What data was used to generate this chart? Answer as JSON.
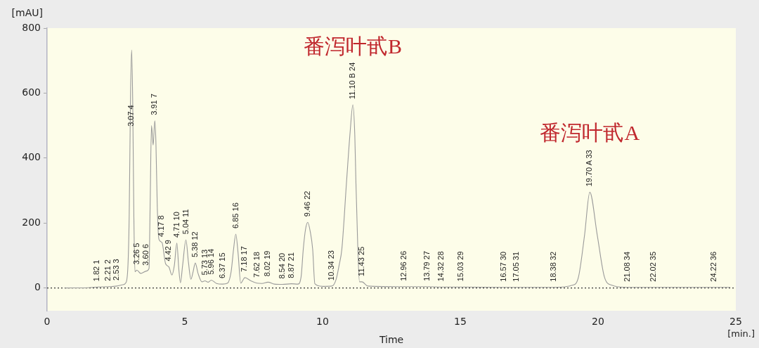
{
  "chart_data": {
    "type": "line",
    "xlabel": "Time",
    "ylabel": "[mAU]",
    "x": [
      0.66,
      1.5,
      1.82,
      2.21,
      2.53,
      2.75,
      2.85,
      2.93,
      2.98,
      3.03,
      3.07,
      3.11,
      3.15,
      3.19,
      3.26,
      3.4,
      3.6,
      3.7,
      3.74,
      3.79,
      3.85,
      3.91,
      3.95,
      4.0,
      4.06,
      4.17,
      4.3,
      4.42,
      4.53,
      4.62,
      4.71,
      4.78,
      4.84,
      4.92,
      5.04,
      5.13,
      5.22,
      5.3,
      5.38,
      5.48,
      5.62,
      5.73,
      5.85,
      5.96,
      6.15,
      6.37,
      6.55,
      6.68,
      6.77,
      6.85,
      6.93,
      7.03,
      7.18,
      7.4,
      7.62,
      7.8,
      8.02,
      8.25,
      8.54,
      8.87,
      9.1,
      9.22,
      9.3,
      9.38,
      9.46,
      9.55,
      9.64,
      9.72,
      10.0,
      10.34,
      10.49,
      10.6,
      10.7,
      10.87,
      11.0,
      11.1,
      11.17,
      11.21,
      11.28,
      11.34,
      11.43,
      11.64,
      12.96,
      13.79,
      14.32,
      15.03,
      16.57,
      17.05,
      18.38,
      19.08,
      19.29,
      19.51,
      19.7,
      19.97,
      20.23,
      20.49,
      21.08,
      22.02,
      24.22,
      24.8
    ],
    "series": [
      {
        "color": "#9a9a9a",
        "values": [
          0,
          1,
          3,
          4,
          6,
          10,
          15,
          60,
          219,
          600,
          733,
          560,
          219,
          50,
          55,
          45,
          52,
          60,
          250,
          500,
          440,
          515,
          450,
          250,
          150,
          140,
          75,
          65,
          40,
          70,
          138,
          60,
          16,
          70,
          148,
          80,
          27,
          50,
          77,
          45,
          19,
          22,
          18,
          24,
          14,
          12,
          15,
          50,
          120,
          166,
          110,
          15,
          32,
          22,
          15,
          14,
          18,
          12,
          11,
          13,
          12,
          34,
          120,
          180,
          202,
          175,
          120,
          13,
          5,
          6,
          26,
          70,
          120,
          327,
          480,
          564,
          470,
          327,
          120,
          19,
          19,
          6,
          4,
          4,
          3,
          3,
          2,
          2,
          2,
          9,
          34,
          163,
          295,
          163,
          34,
          9,
          2,
          2,
          2,
          2
        ]
      }
    ],
    "xlim": [
      0,
      25
    ],
    "xticks": [
      0,
      5,
      10,
      15,
      20,
      25
    ],
    "ylim": [
      -70,
      800
    ],
    "yticks": [
      0,
      200,
      400,
      600,
      800
    ],
    "grid": false,
    "legend": false,
    "marker": "none",
    "line_style": "solid",
    "ref_lines": [
      {
        "axis": "y",
        "value": 0,
        "color": "#333333",
        "line_style": "dotted"
      }
    ],
    "annotations": [
      {
        "text": "1.82 1",
        "x": 1.82,
        "y": 3
      },
      {
        "text": "2.21 2",
        "x": 2.21,
        "y": 4
      },
      {
        "text": "2.53 3",
        "x": 2.53,
        "y": 6
      },
      {
        "text": "3.07 4",
        "x": 3.07,
        "y": 480
      },
      {
        "text": "3.26 5",
        "x": 3.26,
        "y": 55
      },
      {
        "text": "3.60 6",
        "x": 3.6,
        "y": 52
      },
      {
        "text": "3.91 7",
        "x": 3.91,
        "y": 515
      },
      {
        "text": "4.17 8",
        "x": 4.17,
        "y": 140
      },
      {
        "text": "4.42 9",
        "x": 4.42,
        "y": 65
      },
      {
        "text": "4.71 10",
        "x": 4.71,
        "y": 138
      },
      {
        "text": "5.04 11",
        "x": 5.04,
        "y": 148
      },
      {
        "text": "5.38 12",
        "x": 5.38,
        "y": 77
      },
      {
        "text": "5.73 13",
        "x": 5.73,
        "y": 22
      },
      {
        "text": "5.96 14",
        "x": 5.96,
        "y": 24
      },
      {
        "text": "6.37 15",
        "x": 6.37,
        "y": 12
      },
      {
        "text": "6.85 16",
        "x": 6.85,
        "y": 166
      },
      {
        "text": "7.18 17",
        "x": 7.18,
        "y": 32
      },
      {
        "text": "7.62 18",
        "x": 7.62,
        "y": 15
      },
      {
        "text": "8.02 19",
        "x": 8.02,
        "y": 18
      },
      {
        "text": "8.54 20",
        "x": 8.54,
        "y": 11
      },
      {
        "text": "8.87 21",
        "x": 8.87,
        "y": 13
      },
      {
        "text": "9.46 22",
        "x": 9.46,
        "y": 202
      },
      {
        "text": "10.34 23",
        "x": 10.34,
        "y": 6
      },
      {
        "text": "11.10 B 24",
        "x": 11.1,
        "y": 564
      },
      {
        "text": "番泻叶甙B",
        "x": 11.1,
        "y": 564
      },
      {
        "text": "11.43 25",
        "x": 11.43,
        "y": 19
      },
      {
        "text": "12.96 26",
        "x": 12.96,
        "y": 4
      },
      {
        "text": "13.79 27",
        "x": 13.79,
        "y": 4
      },
      {
        "text": "14.32 28",
        "x": 14.32,
        "y": 3
      },
      {
        "text": "15.03 29",
        "x": 15.03,
        "y": 3
      },
      {
        "text": "16.57 30",
        "x": 16.57,
        "y": 2
      },
      {
        "text": "17.05 31",
        "x": 17.05,
        "y": 2
      },
      {
        "text": "18.38 32",
        "x": 18.38,
        "y": 2
      },
      {
        "text": "19.70 A 33",
        "x": 19.7,
        "y": 295
      },
      {
        "text": "番泻叶甙A",
        "x": 19.7,
        "y": 295
      },
      {
        "text": "21.08 34",
        "x": 21.08,
        "y": 2
      },
      {
        "text": "22.02 35",
        "x": 22.02,
        "y": 2
      },
      {
        "text": "24.22 36",
        "x": 24.22,
        "y": 2
      },
      "[min.]"
    ]
  }
}
